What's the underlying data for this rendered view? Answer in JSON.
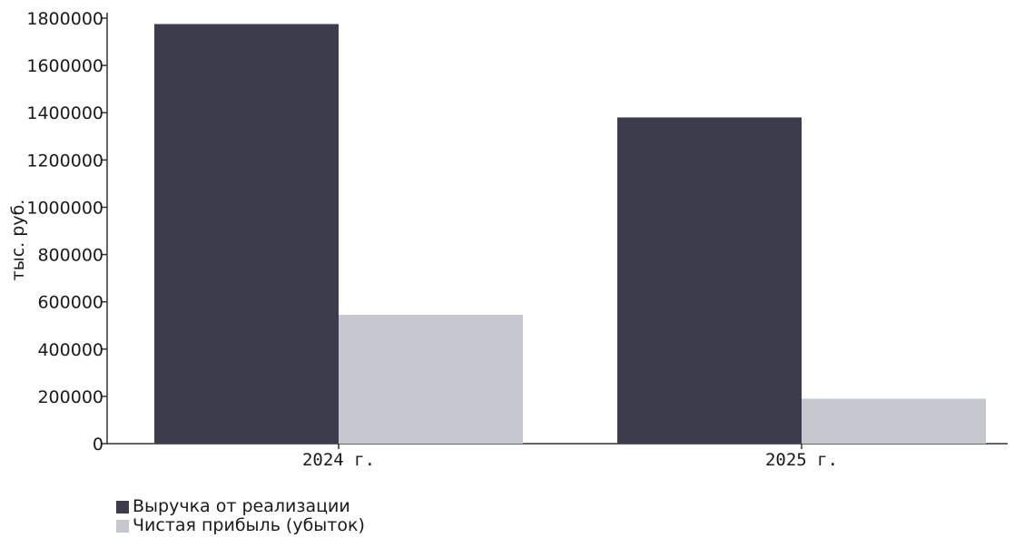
{
  "chart_data": {
    "type": "bar",
    "title": "",
    "xlabel": "",
    "ylabel": "тыс. руб.",
    "ylim": [
      0,
      1800000
    ],
    "yticks": [
      0,
      200000,
      400000,
      600000,
      800000,
      1000000,
      1200000,
      1400000,
      1600000,
      1800000
    ],
    "ytick_labels": [
      "0",
      "200000",
      "400000",
      "600000",
      "800000",
      "1000000",
      "1200000",
      "1400000",
      "1600000",
      "1800000"
    ],
    "categories": [
      "2024 г.",
      "2025 г."
    ],
    "series": [
      {
        "name": "Выручка от реализации",
        "color": "#3c3c4c",
        "values": [
          1775000,
          1380000
        ]
      },
      {
        "name": "Чистая прибыль (убыток)",
        "color": "#c6c6ce",
        "values": [
          545000,
          190000
        ]
      }
    ],
    "grid": false,
    "legend_position": "bottom-left"
  }
}
